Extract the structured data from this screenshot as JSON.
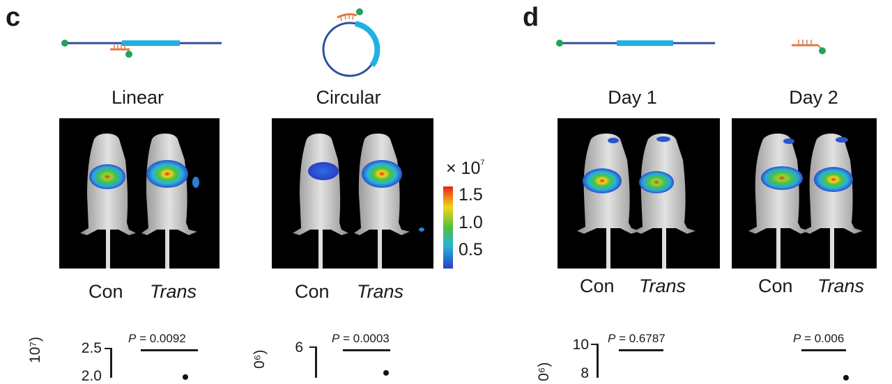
{
  "panel_c": {
    "letter": "c",
    "construct_labels": [
      "Linear",
      "Circular"
    ],
    "group_labels": {
      "control": "Con",
      "treated": "Trans"
    },
    "colorbar": {
      "multiplier": "× 10",
      "exponent": "7",
      "ticks": [
        "1.5",
        "1.0",
        "0.5"
      ]
    },
    "plots": [
      {
        "p_label": "P",
        "p_value": "= 0.0092",
        "ticks": [
          "2.5",
          "2.0"
        ],
        "ylabel_fragment": "10⁷)"
      },
      {
        "p_label": "P",
        "p_value": "= 0.0003",
        "ticks": [
          "6"
        ],
        "ylabel_fragment": "0⁶)"
      }
    ]
  },
  "panel_d": {
    "letter": "d",
    "day_labels": [
      "Day 1",
      "Day 2"
    ],
    "group_labels": {
      "control": "Con",
      "treated": "Trans"
    },
    "plots": [
      {
        "p_label": "P",
        "p_value": "= 0.6787",
        "ticks": [
          "10",
          "8"
        ],
        "ylabel_fragment": "0⁶)"
      },
      {
        "p_label": "P",
        "p_value": "= 0.006",
        "ticks": [],
        "ylabel_fragment": ""
      }
    ]
  },
  "colors": {
    "dna_dark": "#2f4f9a",
    "dna_light": "#1fb0e4",
    "probe": "#e07a45",
    "dye": "#1fa45a"
  }
}
